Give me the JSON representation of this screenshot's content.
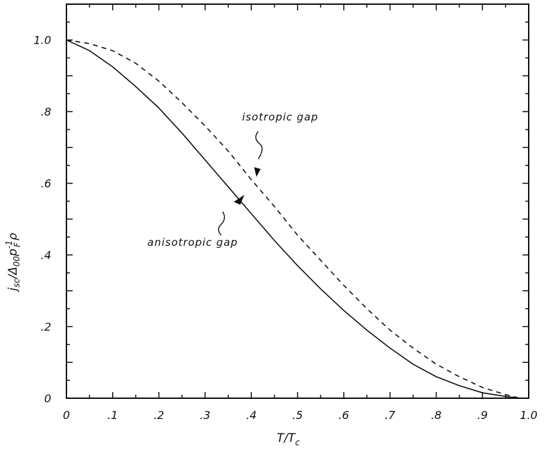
{
  "chart_data": {
    "type": "line",
    "xlabel": {
      "main": "T/T",
      "sub": "c"
    },
    "ylabel": {
      "main": "j",
      "sub1": "sc",
      "mid": "/Δ",
      "sub2": "00",
      "mid2": "p",
      "sup": "-1",
      "sub3": "F",
      "end": "ρ"
    },
    "xlim": [
      0,
      1.0
    ],
    "ylim": [
      0,
      1.1
    ],
    "x_ticks": [
      {
        "value": 0,
        "label": "0"
      },
      {
        "value": 0.1,
        "label": ".1"
      },
      {
        "value": 0.2,
        "label": ".2"
      },
      {
        "value": 0.3,
        "label": ".3"
      },
      {
        "value": 0.4,
        "label": ".4"
      },
      {
        "value": 0.5,
        "label": ".5"
      },
      {
        "value": 0.6,
        "label": ".6"
      },
      {
        "value": 0.7,
        "label": ".7"
      },
      {
        "value": 0.8,
        "label": ".8"
      },
      {
        "value": 0.9,
        "label": ".9"
      },
      {
        "value": 1.0,
        "label": "1.0"
      }
    ],
    "y_ticks": [
      {
        "value": 0,
        "label": "0"
      },
      {
        "value": 0.2,
        "label": ".2"
      },
      {
        "value": 0.4,
        "label": ".4"
      },
      {
        "value": 0.6,
        "label": ".6"
      },
      {
        "value": 0.8,
        "label": ".8"
      },
      {
        "value": 1.0,
        "label": "1.0"
      }
    ],
    "series": [
      {
        "name": "isotropic gap",
        "style": "dashed",
        "x": [
          0,
          0.05,
          0.1,
          0.15,
          0.2,
          0.25,
          0.3,
          0.35,
          0.4,
          0.45,
          0.5,
          0.55,
          0.6,
          0.65,
          0.7,
          0.75,
          0.8,
          0.85,
          0.9,
          0.95,
          0.98
        ],
        "y": [
          1.0,
          0.99,
          0.97,
          0.935,
          0.885,
          0.825,
          0.76,
          0.69,
          0.61,
          0.535,
          0.455,
          0.385,
          0.315,
          0.25,
          0.19,
          0.14,
          0.095,
          0.06,
          0.03,
          0.01,
          0.0
        ]
      },
      {
        "name": "anisotropic gap",
        "style": "solid",
        "x": [
          0,
          0.05,
          0.1,
          0.15,
          0.2,
          0.25,
          0.3,
          0.35,
          0.4,
          0.45,
          0.5,
          0.55,
          0.6,
          0.65,
          0.7,
          0.75,
          0.8,
          0.85,
          0.9,
          0.95,
          0.98
        ],
        "y": [
          1.0,
          0.97,
          0.925,
          0.87,
          0.81,
          0.74,
          0.665,
          0.59,
          0.515,
          0.44,
          0.37,
          0.305,
          0.245,
          0.19,
          0.14,
          0.095,
          0.06,
          0.035,
          0.015,
          0.005,
          0.0
        ]
      }
    ],
    "annotations": [
      {
        "text": "isotropic gap",
        "target_series": "isotropic gap",
        "arrow_to": {
          "x": 0.44,
          "y": 0.6
        }
      },
      {
        "text": "anisotropic gap",
        "target_series": "anisotropic gap",
        "arrow_to": {
          "x": 0.38,
          "y": 0.575
        }
      }
    ],
    "grid": false
  },
  "colors": {
    "line": "#111111",
    "axis": "#111111"
  }
}
